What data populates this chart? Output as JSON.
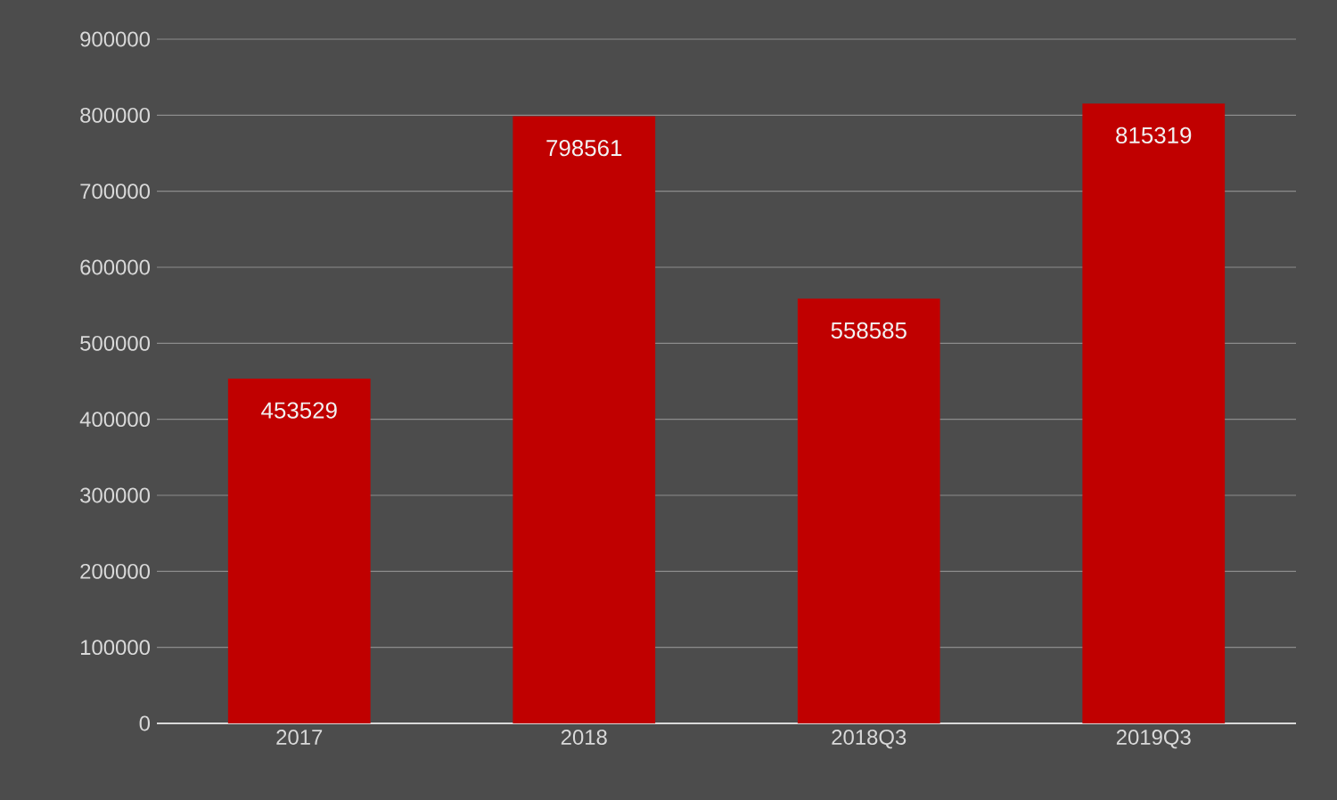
{
  "chart_data": {
    "type": "bar",
    "categories": [
      "2017",
      "2018",
      "2018Q3",
      "2019Q3"
    ],
    "values": [
      453529,
      798561,
      558585,
      815319
    ],
    "color": "#c00000",
    "ylim": [
      0,
      900000
    ],
    "yticks": [
      0,
      100000,
      200000,
      300000,
      400000,
      500000,
      600000,
      700000,
      800000,
      900000
    ],
    "grid": "y",
    "data_labels": true
  }
}
